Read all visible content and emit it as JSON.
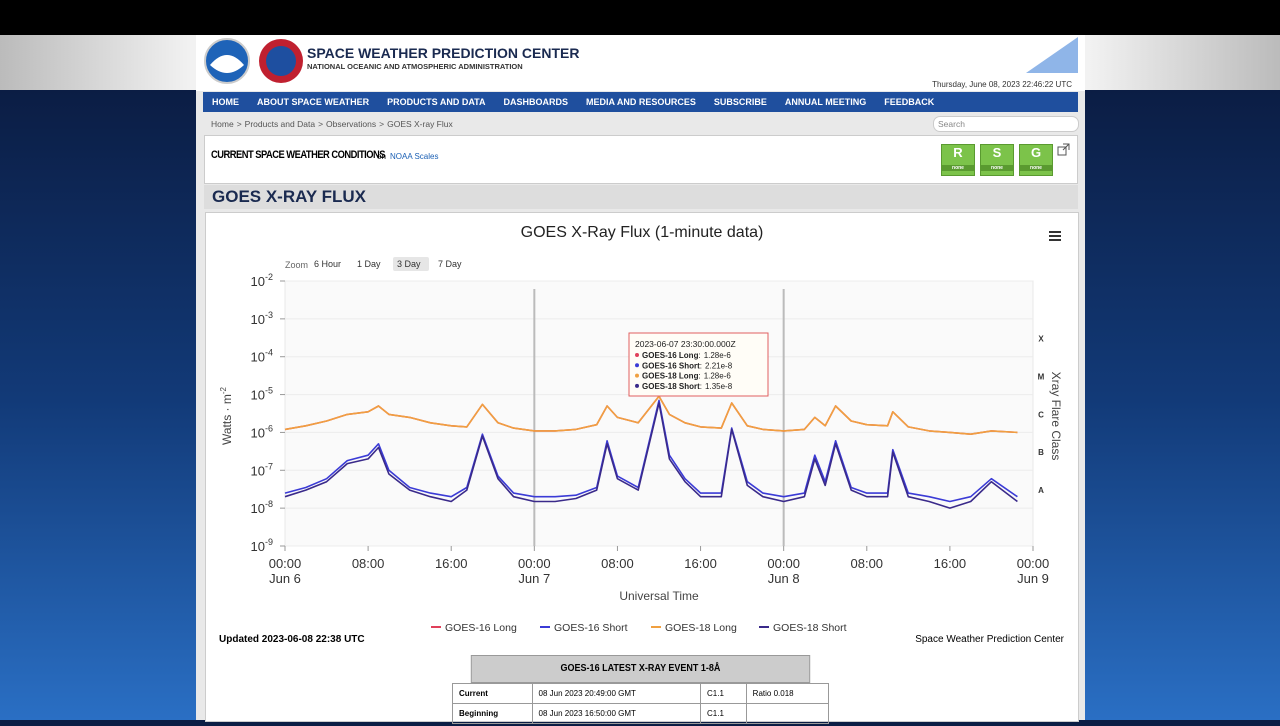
{
  "header": {
    "title": "SPACE WEATHER PREDICTION CENTER",
    "subtitle": "NATIONAL OCEANIC AND ATMOSPHERIC ADMINISTRATION",
    "datetime": "Thursday, June 08, 2023 22:46:22 UTC"
  },
  "nav": [
    "HOME",
    "ABOUT SPACE WEATHER",
    "PRODUCTS AND DATA",
    "DASHBOARDS",
    "MEDIA AND RESOURCES",
    "SUBSCRIBE",
    "ANNUAL MEETING",
    "FEEDBACK"
  ],
  "breadcrumb": {
    "items": [
      "Home",
      "Products and Data",
      "Observations",
      "GOES X-ray Flux"
    ],
    "separator": ">"
  },
  "search_placeholder": "Search",
  "conditions": {
    "title": "CURRENT SPACE WEATHER CONDITIONS",
    "on": "on",
    "link": "NOAA Scales",
    "scales": [
      {
        "letter": "R",
        "status": "none"
      },
      {
        "letter": "S",
        "status": "none"
      },
      {
        "letter": "G",
        "status": "none"
      }
    ]
  },
  "page_title": "GOES X-RAY FLUX",
  "chart_data": {
    "type": "line",
    "title": "GOES X-Ray Flux (1-minute data)",
    "zoom": {
      "label": "Zoom",
      "buttons": [
        "6 Hour",
        "1 Day",
        "3 Day",
        "7 Day"
      ],
      "selected": 2
    },
    "xlabel": "Universal Time",
    "ylabel": "Watts · m",
    "ylabel_exponent": "-2",
    "y2label": "Xray Flare Class",
    "log_y": true,
    "ylim": [
      1e-09,
      0.01
    ],
    "yticks": [
      {
        "value": 1e-09,
        "label": "10",
        "exponent": "-9"
      },
      {
        "value": 1e-08,
        "label": "10",
        "exponent": "-8"
      },
      {
        "value": 1e-07,
        "label": "10",
        "exponent": "-7"
      },
      {
        "value": 1e-06,
        "label": "10",
        "exponent": "-6"
      },
      {
        "value": 1e-05,
        "label": "10",
        "exponent": "-5"
      },
      {
        "value": 0.0001,
        "label": "10",
        "exponent": "-4"
      },
      {
        "value": 0.001,
        "label": "10",
        "exponent": "-3"
      },
      {
        "value": 0.01,
        "label": "10",
        "exponent": "-2"
      }
    ],
    "y2ticks": [
      {
        "value": 3e-08,
        "label": "A"
      },
      {
        "value": 3e-07,
        "label": "B"
      },
      {
        "value": 3e-06,
        "label": "C"
      },
      {
        "value": 3e-05,
        "label": "M"
      },
      {
        "value": 0.0003,
        "label": "X"
      }
    ],
    "xlim": [
      "2023-06-06 00:00",
      "2023-06-09 00:00"
    ],
    "xticks": [
      {
        "value": "2023-06-06 00:00",
        "label": "00:00",
        "date": "Jun 6"
      },
      {
        "value": "2023-06-06 08:00",
        "label": "08:00"
      },
      {
        "value": "2023-06-06 16:00",
        "label": "16:00"
      },
      {
        "value": "2023-06-07 00:00",
        "label": "00:00",
        "date": "Jun 7"
      },
      {
        "value": "2023-06-07 08:00",
        "label": "08:00"
      },
      {
        "value": "2023-06-07 16:00",
        "label": "16:00"
      },
      {
        "value": "2023-06-08 00:00",
        "label": "00:00",
        "date": "Jun 8"
      },
      {
        "value": "2023-06-08 08:00",
        "label": "08:00"
      },
      {
        "value": "2023-06-08 16:00",
        "label": "16:00"
      },
      {
        "value": "2023-06-09 00:00",
        "label": "00:00",
        "date": "Jun 9"
      }
    ],
    "plot_lines": [
      "2023-06-07 00:00",
      "2023-06-08 00:00"
    ],
    "x": [
      "2023-06-06 00:00",
      "2023-06-06 02:00",
      "2023-06-06 04:00",
      "2023-06-06 06:00",
      "2023-06-06 08:00",
      "2023-06-06 09:00",
      "2023-06-06 10:00",
      "2023-06-06 12:00",
      "2023-06-06 14:00",
      "2023-06-06 16:00",
      "2023-06-06 17:30",
      "2023-06-06 19:00",
      "2023-06-06 20:30",
      "2023-06-06 22:00",
      "2023-06-07 00:00",
      "2023-06-07 02:00",
      "2023-06-07 04:00",
      "2023-06-07 06:00",
      "2023-06-07 07:00",
      "2023-06-07 08:00",
      "2023-06-07 10:00",
      "2023-06-07 12:00",
      "2023-06-07 13:00",
      "2023-06-07 14:30",
      "2023-06-07 16:00",
      "2023-06-07 18:00",
      "2023-06-07 19:00",
      "2023-06-07 20:30",
      "2023-06-07 22:00",
      "2023-06-08 00:00",
      "2023-06-08 02:00",
      "2023-06-08 03:00",
      "2023-06-08 04:00",
      "2023-06-08 05:00",
      "2023-06-08 06:30",
      "2023-06-08 08:00",
      "2023-06-08 10:00",
      "2023-06-08 10:30",
      "2023-06-08 12:00",
      "2023-06-08 14:00",
      "2023-06-08 16:00",
      "2023-06-08 18:00",
      "2023-06-08 20:00",
      "2023-06-08 22:30"
    ],
    "series": [
      {
        "name": "GOES-16 Long",
        "color": "#e0405a",
        "values": [
          1.2e-06,
          1.5e-06,
          2e-06,
          3e-06,
          3.5e-06,
          5e-06,
          3e-06,
          2.5e-06,
          1.8e-06,
          1.5e-06,
          1.4e-06,
          5.5e-06,
          1.8e-06,
          1.3e-06,
          1.1e-06,
          1.1e-06,
          1.2e-06,
          1.6e-06,
          5e-06,
          2.5e-06,
          1.8e-06,
          9e-06,
          3e-06,
          1.8e-06,
          1.4e-06,
          1.3e-06,
          6e-06,
          1.5e-06,
          1.2e-06,
          1.1e-06,
          1.2e-06,
          2.5e-06,
          1.5e-06,
          5e-06,
          2e-06,
          1.6e-06,
          1.5e-06,
          3.5e-06,
          1.4e-06,
          1.1e-06,
          1e-06,
          9e-07,
          1.1e-06,
          1e-06
        ]
      },
      {
        "name": "GOES-16 Short",
        "color": "#3b3bd6",
        "values": [
          2.5e-08,
          3.5e-08,
          6e-08,
          1.8e-07,
          2.5e-07,
          5e-07,
          1e-07,
          3.5e-08,
          2.5e-08,
          2e-08,
          3.5e-08,
          9e-07,
          7e-08,
          2.5e-08,
          2e-08,
          2e-08,
          2.2e-08,
          3.5e-08,
          6e-07,
          7e-08,
          3.5e-08,
          7e-06,
          2.5e-07,
          6e-08,
          2.5e-08,
          2.5e-08,
          1.3e-06,
          5e-08,
          2.5e-08,
          2e-08,
          2.5e-08,
          2.5e-07,
          5e-08,
          6e-07,
          3.5e-08,
          2.5e-08,
          2.5e-08,
          3.5e-07,
          2.5e-08,
          2e-08,
          1.5e-08,
          2e-08,
          6e-08,
          2e-08
        ]
      },
      {
        "name": "GOES-18 Long",
        "color": "#f0a040",
        "values": [
          1.2e-06,
          1.5e-06,
          2e-06,
          3e-06,
          3.5e-06,
          5e-06,
          3e-06,
          2.5e-06,
          1.8e-06,
          1.5e-06,
          1.4e-06,
          5.5e-06,
          1.8e-06,
          1.3e-06,
          1.1e-06,
          1.1e-06,
          1.2e-06,
          1.6e-06,
          5e-06,
          2.5e-06,
          1.8e-06,
          9e-06,
          3e-06,
          1.8e-06,
          1.4e-06,
          1.3e-06,
          6e-06,
          1.5e-06,
          1.2e-06,
          1.1e-06,
          1.2e-06,
          2.5e-06,
          1.5e-06,
          5e-06,
          2e-06,
          1.6e-06,
          1.5e-06,
          3.5e-06,
          1.4e-06,
          1.1e-06,
          1e-06,
          9e-07,
          1.1e-06,
          1e-06
        ]
      },
      {
        "name": "GOES-18 Short",
        "color": "#3a2a8a",
        "values": [
          2e-08,
          3e-08,
          5e-08,
          1.5e-07,
          2e-07,
          4e-07,
          8e-08,
          3e-08,
          2e-08,
          1.5e-08,
          3e-08,
          8e-07,
          6e-08,
          2e-08,
          1.5e-08,
          1.5e-08,
          1.8e-08,
          3e-08,
          5e-07,
          6e-08,
          3e-08,
          6e-06,
          2e-07,
          5e-08,
          2e-08,
          2e-08,
          1.2e-06,
          4e-08,
          2e-08,
          1.5e-08,
          2e-08,
          2e-07,
          4e-08,
          5e-07,
          3e-08,
          2e-08,
          2e-08,
          3e-07,
          2e-08,
          1.5e-08,
          1e-08,
          1.5e-08,
          5e-08,
          1.5e-08
        ]
      }
    ],
    "tooltip": {
      "title": "2023-06-07 23:30:00.000Z",
      "separator": ":",
      "values": [
        1.28e-06,
        2.21e-08,
        1.28e-06,
        1.35e-08
      ],
      "value_labels": [
        "1.28e-6",
        "2.21e-8",
        "1.28e-6",
        "1.35e-8"
      ]
    }
  },
  "updated": "Updated 2023-06-08 22:38 UTC",
  "credit": "Space Weather Prediction Center",
  "event_table": {
    "title": "GOES-16 LATEST X-RAY EVENT 1-8Å",
    "rows": [
      [
        "Current",
        "08 Jun 2023 20:49:00 GMT",
        "C1.1",
        "Ratio 0.018"
      ],
      [
        "Beginning",
        "08 Jun 2023 16:50:00 GMT",
        "C1.1"
      ]
    ]
  }
}
